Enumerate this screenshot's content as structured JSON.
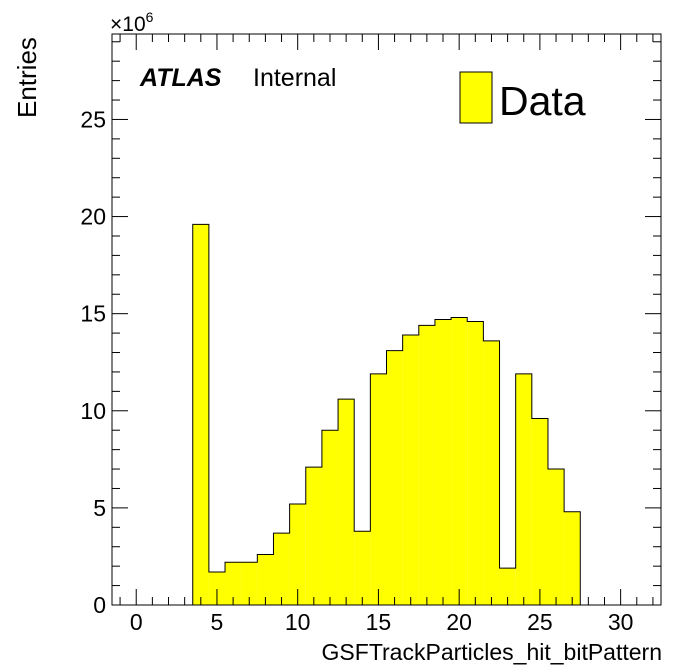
{
  "chart_data": {
    "type": "bar",
    "style": "histogram",
    "xlabel": "GSFTrackParticles_hit_bitPattern",
    "ylabel": "Entries",
    "y_multiplier": "×10",
    "y_multiplier_exp": "6",
    "xlim": [
      -1.5,
      32.5
    ],
    "ylim": [
      0,
      29.4
    ],
    "x_ticks": [
      0,
      5,
      10,
      15,
      20,
      25,
      30
    ],
    "y_ticks": [
      0,
      5,
      10,
      15,
      20,
      25
    ],
    "bin_width": 1,
    "bin_low_edges": [
      3.5,
      4.5,
      5.5,
      6.5,
      7.5,
      8.5,
      9.5,
      10.5,
      11.5,
      12.5,
      13.5,
      14.5,
      15.5,
      16.5,
      17.5,
      18.5,
      19.5,
      20.5,
      21.5,
      22.5,
      23.5,
      24.5,
      25.5,
      26.5
    ],
    "series": [
      {
        "name": "Data",
        "values": [
          19.6,
          1.7,
          2.2,
          2.2,
          2.6,
          3.7,
          5.2,
          7.1,
          9.0,
          10.6,
          3.8,
          11.9,
          13.1,
          13.9,
          14.4,
          14.7,
          14.8,
          14.6,
          13.6,
          1.9,
          11.9,
          9.6,
          7.0,
          4.8
        ]
      }
    ],
    "fill_color": "#ffff00",
    "edge_color": "#000000",
    "legend_placement": "top-right",
    "grid": false
  },
  "annotation": {
    "atlas": "ATLAS",
    "internal": "Internal"
  }
}
